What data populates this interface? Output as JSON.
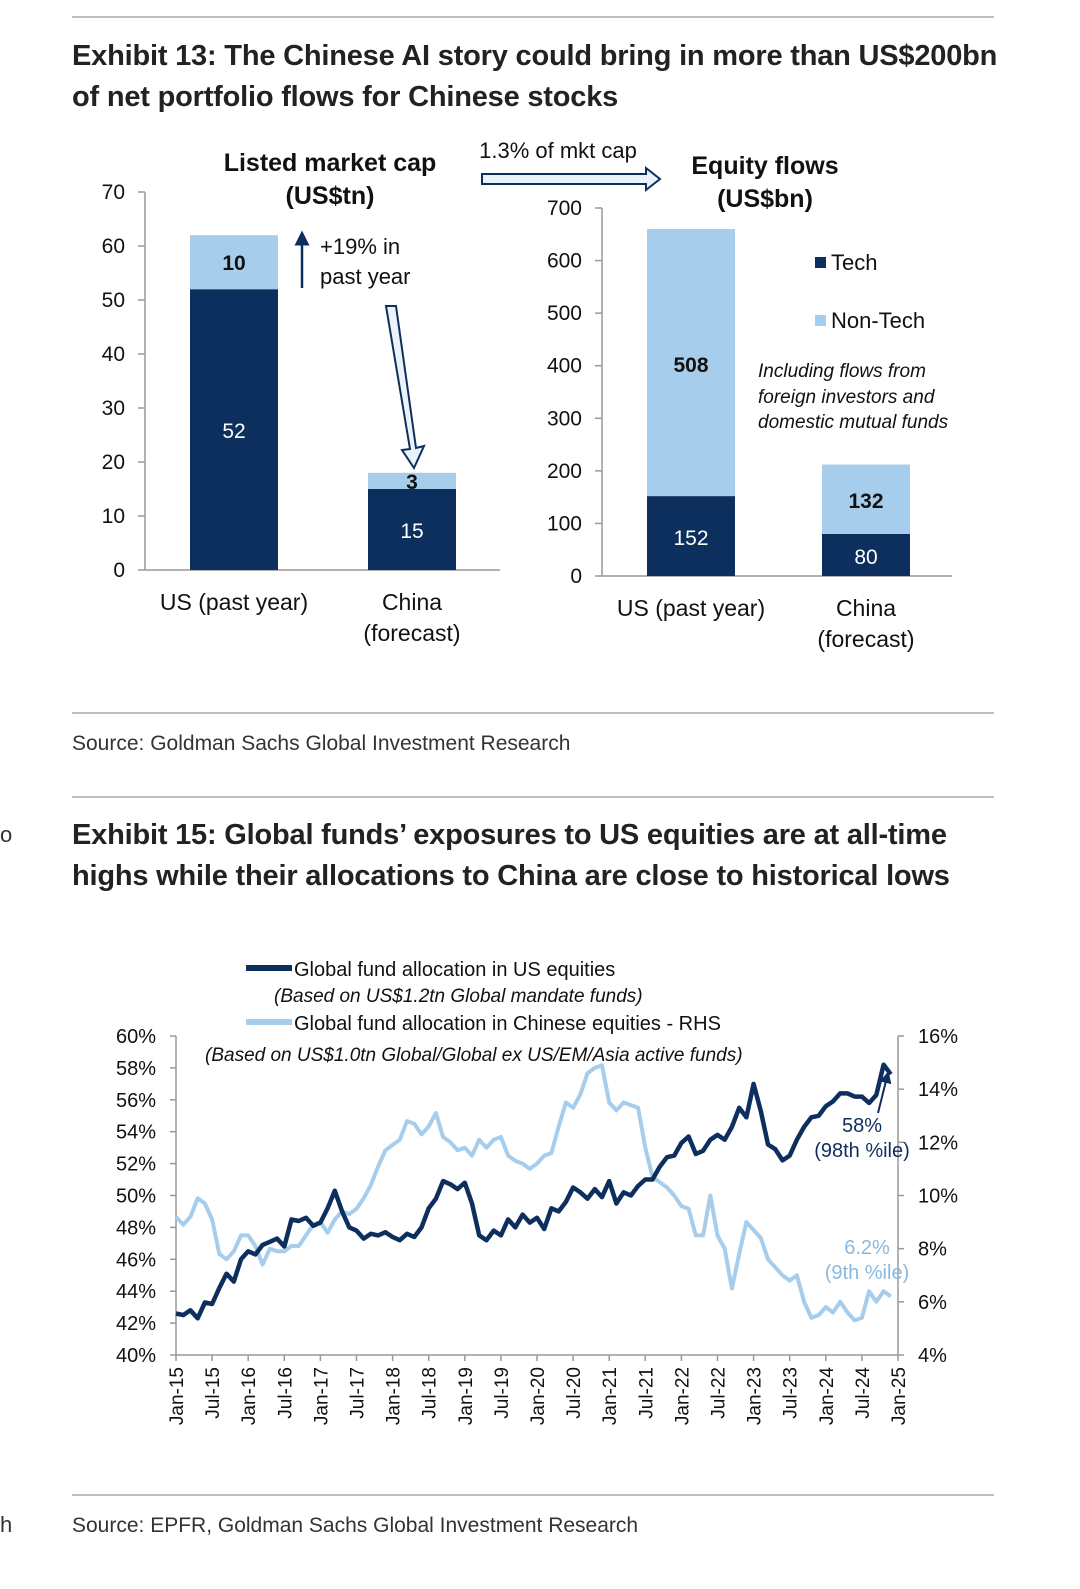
{
  "colors": {
    "tech": "#0d2f5e",
    "nontech": "#a6cdec",
    "us_line": "#0d2f5e",
    "china_line": "#a6cdec",
    "rule": "#bdbdbd"
  },
  "edge": {
    "mark_top": "o",
    "mark_bottom": "h"
  },
  "exhibit13": {
    "title_line1": "Exhibit 13: The Chinese AI story could bring in more than US$200bn",
    "title_line2": "of net portfolio flows for Chinese stocks",
    "arrow_label": "1.3% of mkt cap",
    "growth_note_line1": "+19% in",
    "growth_note_line2": "past year",
    "flow_note_line1": "Including flows from",
    "flow_note_line2": "foreign investors and",
    "flow_note_line3": "domestic mutual funds",
    "source": "Source: Goldman Sachs Global Investment Research"
  },
  "exhibit15": {
    "title_line1": "Exhibit 15: Global funds’ exposures to US equities are at all-time",
    "title_line2": "highs while their allocations to China are close to historical lows",
    "legend_us": "Global fund allocation in US equities",
    "legend_us_note": "(Based on US$1.2tn Global mandate funds)",
    "legend_china": "Global fund allocation in Chinese equities - RHS",
    "legend_china_note": "(Based on US$1.0tn Global/Global ex US/EM/Asia active funds)",
    "us_annotation_value": "58%",
    "us_annotation_pct": "(98th %ile)",
    "china_annotation_value": "6.2%",
    "china_annotation_pct": "(9th %ile)",
    "source": "Source: EPFR, Goldman Sachs Global Investment Research"
  },
  "chart_data": [
    {
      "type": "bar",
      "stacked": true,
      "title": "Listed market cap (US$tn)",
      "title_line1": "Listed market cap",
      "title_line2": "(US$tn)",
      "categories": [
        "US (past year)",
        "China (forecast)"
      ],
      "category_lines": [
        [
          "US (past year)"
        ],
        [
          "China",
          "(forecast)"
        ]
      ],
      "series": [
        {
          "name": "Tech",
          "values": [
            52,
            15
          ]
        },
        {
          "name": "Non-Tech",
          "values": [
            10,
            3
          ]
        }
      ],
      "ylim": [
        0,
        70
      ],
      "yticks": [
        0,
        10,
        20,
        30,
        40,
        50,
        60,
        70
      ]
    },
    {
      "type": "bar",
      "stacked": true,
      "title": "Equity flows (US$bn)",
      "title_line1": "Equity flows",
      "title_line2": "(US$bn)",
      "categories": [
        "US (past year)",
        "China (forecast)"
      ],
      "category_lines": [
        [
          "US (past year)"
        ],
        [
          "China",
          "(forecast)"
        ]
      ],
      "series": [
        {
          "name": "Tech",
          "values": [
            152,
            80
          ]
        },
        {
          "name": "Non-Tech",
          "values": [
            508,
            132
          ]
        }
      ],
      "ylim": [
        0,
        700
      ],
      "yticks": [
        0,
        100,
        200,
        300,
        400,
        500,
        600,
        700
      ],
      "legend": [
        "Tech",
        "Non-Tech"
      ],
      "legend_position": "top-right"
    },
    {
      "type": "line",
      "title": "",
      "x_tick_labels": [
        "Jan-15",
        "Jul-15",
        "Jan-16",
        "Jul-16",
        "Jan-17",
        "Jul-17",
        "Jan-18",
        "Jul-18",
        "Jan-19",
        "Jul-19",
        "Jan-20",
        "Jul-20",
        "Jan-21",
        "Jul-21",
        "Jan-22",
        "Jul-22",
        "Jan-23",
        "Jul-23",
        "Jan-24",
        "Jul-24",
        "Jan-25"
      ],
      "ylim": [
        40,
        60
      ],
      "yticks": [
        "40%",
        "42%",
        "44%",
        "46%",
        "48%",
        "50%",
        "52%",
        "54%",
        "56%",
        "58%",
        "60%"
      ],
      "y2lim": [
        4,
        16
      ],
      "y2ticks": [
        "4%",
        "6%",
        "8%",
        "10%",
        "12%",
        "14%",
        "16%"
      ],
      "series": [
        {
          "name": "Global fund allocation in US equities",
          "axis": "left",
          "points": [
            [
              0,
              42.6
            ],
            [
              1,
              42.5
            ],
            [
              2,
              42.8
            ],
            [
              3,
              42.3
            ],
            [
              4,
              43.3
            ],
            [
              5,
              43.2
            ],
            [
              6,
              44.2
            ],
            [
              7,
              45.1
            ],
            [
              8,
              44.6
            ],
            [
              9,
              46.0
            ],
            [
              10,
              46.5
            ],
            [
              11,
              46.3
            ],
            [
              12,
              46.9
            ],
            [
              13,
              47.1
            ],
            [
              14,
              47.3
            ],
            [
              15,
              46.8
            ],
            [
              16,
              48.5
            ],
            [
              17,
              48.4
            ],
            [
              18,
              48.6
            ],
            [
              19,
              48.1
            ],
            [
              20,
              48.3
            ],
            [
              21,
              49.2
            ],
            [
              22,
              50.3
            ],
            [
              23,
              49.0
            ],
            [
              24,
              48.0
            ],
            [
              25,
              47.8
            ],
            [
              26,
              47.3
            ],
            [
              27,
              47.6
            ],
            [
              28,
              47.5
            ],
            [
              29,
              47.7
            ],
            [
              30,
              47.4
            ],
            [
              31,
              47.2
            ],
            [
              32,
              47.6
            ],
            [
              33,
              47.4
            ],
            [
              34,
              48.0
            ],
            [
              35,
              49.2
            ],
            [
              36,
              49.8
            ],
            [
              37,
              50.9
            ],
            [
              38,
              50.7
            ],
            [
              39,
              50.4
            ],
            [
              40,
              50.8
            ],
            [
              41,
              49.5
            ],
            [
              42,
              47.5
            ],
            [
              43,
              47.2
            ],
            [
              44,
              47.8
            ],
            [
              45,
              47.5
            ],
            [
              46,
              48.5
            ],
            [
              47,
              48.0
            ],
            [
              48,
              48.8
            ],
            [
              49,
              48.3
            ],
            [
              50,
              48.6
            ],
            [
              51,
              47.9
            ],
            [
              52,
              49.2
            ],
            [
              53,
              49.0
            ],
            [
              54,
              49.6
            ],
            [
              55,
              50.5
            ],
            [
              56,
              50.2
            ],
            [
              57,
              49.8
            ],
            [
              58,
              50.4
            ],
            [
              59,
              49.9
            ],
            [
              60,
              50.9
            ],
            [
              61,
              49.5
            ],
            [
              62,
              50.2
            ],
            [
              63,
              50.0
            ],
            [
              64,
              50.6
            ],
            [
              65,
              51.0
            ],
            [
              66,
              51.0
            ],
            [
              67,
              51.8
            ],
            [
              68,
              52.4
            ],
            [
              69,
              52.5
            ],
            [
              70,
              53.3
            ],
            [
              71,
              53.7
            ],
            [
              72,
              52.6
            ],
            [
              73,
              52.8
            ],
            [
              74,
              53.5
            ],
            [
              75,
              53.8
            ],
            [
              76,
              53.5
            ],
            [
              77,
              54.3
            ],
            [
              78,
              55.5
            ],
            [
              79,
              54.9
            ],
            [
              80,
              57.0
            ],
            [
              81,
              55.3
            ],
            [
              82,
              53.2
            ],
            [
              83,
              52.9
            ],
            [
              84,
              52.2
            ],
            [
              85,
              52.5
            ],
            [
              86,
              53.5
            ],
            [
              87,
              54.3
            ],
            [
              88,
              54.9
            ],
            [
              89,
              55.0
            ],
            [
              90,
              55.6
            ],
            [
              91,
              55.9
            ],
            [
              92,
              56.4
            ],
            [
              93,
              56.4
            ],
            [
              94,
              56.2
            ],
            [
              95,
              56.2
            ],
            [
              96,
              55.8
            ],
            [
              97,
              56.3
            ],
            [
              98,
              58.2
            ],
            [
              99,
              57.6
            ]
          ]
        },
        {
          "name": "Global fund allocation in Chinese equities - RHS",
          "axis": "right",
          "points": [
            [
              0,
              9.2
            ],
            [
              1,
              8.9
            ],
            [
              2,
              9.2
            ],
            [
              3,
              9.9
            ],
            [
              4,
              9.7
            ],
            [
              5,
              9.1
            ],
            [
              6,
              7.8
            ],
            [
              7,
              7.6
            ],
            [
              8,
              7.9
            ],
            [
              9,
              8.5
            ],
            [
              10,
              8.5
            ],
            [
              11,
              8.1
            ],
            [
              12,
              7.4
            ],
            [
              13,
              8.0
            ],
            [
              14,
              7.9
            ],
            [
              15,
              7.9
            ],
            [
              16,
              8.1
            ],
            [
              17,
              8.1
            ],
            [
              18,
              8.5
            ],
            [
              19,
              8.9
            ],
            [
              20,
              9.0
            ],
            [
              21,
              8.6
            ],
            [
              22,
              9.1
            ],
            [
              23,
              9.4
            ],
            [
              24,
              9.3
            ],
            [
              25,
              9.5
            ],
            [
              26,
              9.9
            ],
            [
              27,
              10.4
            ],
            [
              28,
              11.1
            ],
            [
              29,
              11.7
            ],
            [
              30,
              11.9
            ],
            [
              31,
              12.1
            ],
            [
              32,
              12.8
            ],
            [
              33,
              12.7
            ],
            [
              34,
              12.3
            ],
            [
              35,
              12.6
            ],
            [
              36,
              13.1
            ],
            [
              37,
              12.2
            ],
            [
              38,
              12.0
            ],
            [
              39,
              11.7
            ],
            [
              40,
              11.8
            ],
            [
              41,
              11.5
            ],
            [
              42,
              12.1
            ],
            [
              43,
              11.8
            ],
            [
              44,
              12.1
            ],
            [
              45,
              12.2
            ],
            [
              46,
              11.5
            ],
            [
              47,
              11.3
            ],
            [
              48,
              11.2
            ],
            [
              49,
              11.0
            ],
            [
              50,
              11.2
            ],
            [
              51,
              11.5
            ],
            [
              52,
              11.6
            ],
            [
              53,
              12.6
            ],
            [
              54,
              13.5
            ],
            [
              55,
              13.3
            ],
            [
              56,
              13.8
            ],
            [
              57,
              14.6
            ],
            [
              58,
              14.8
            ],
            [
              59,
              14.9
            ],
            [
              60,
              13.5
            ],
            [
              61,
              13.2
            ],
            [
              62,
              13.5
            ],
            [
              63,
              13.4
            ],
            [
              64,
              13.3
            ],
            [
              65,
              11.8
            ],
            [
              66,
              10.7
            ],
            [
              67,
              10.5
            ],
            [
              68,
              10.3
            ],
            [
              69,
              10.0
            ],
            [
              70,
              9.6
            ],
            [
              71,
              9.5
            ],
            [
              72,
              8.5
            ],
            [
              73,
              8.5
            ],
            [
              74,
              10.0
            ],
            [
              75,
              8.5
            ],
            [
              76,
              8.0
            ],
            [
              77,
              6.5
            ],
            [
              78,
              7.8
            ],
            [
              79,
              9.0
            ],
            [
              80,
              8.7
            ],
            [
              81,
              8.4
            ],
            [
              82,
              7.6
            ],
            [
              83,
              7.3
            ],
            [
              84,
              7.0
            ],
            [
              85,
              6.8
            ],
            [
              86,
              7.0
            ],
            [
              87,
              6.0
            ],
            [
              88,
              5.4
            ],
            [
              89,
              5.5
            ],
            [
              90,
              5.8
            ],
            [
              91,
              5.6
            ],
            [
              92,
              6.0
            ],
            [
              93,
              5.6
            ],
            [
              94,
              5.3
            ],
            [
              95,
              5.4
            ],
            [
              96,
              6.4
            ],
            [
              97,
              6.0
            ],
            [
              98,
              6.4
            ],
            [
              99,
              6.2
            ]
          ]
        }
      ],
      "annotations": [
        {
          "series": "Global fund allocation in US equities",
          "text": "58% (98th %ile)"
        },
        {
          "series": "Global fund allocation in Chinese equities - RHS",
          "text": "6.2% (9th %ile)"
        }
      ]
    }
  ]
}
